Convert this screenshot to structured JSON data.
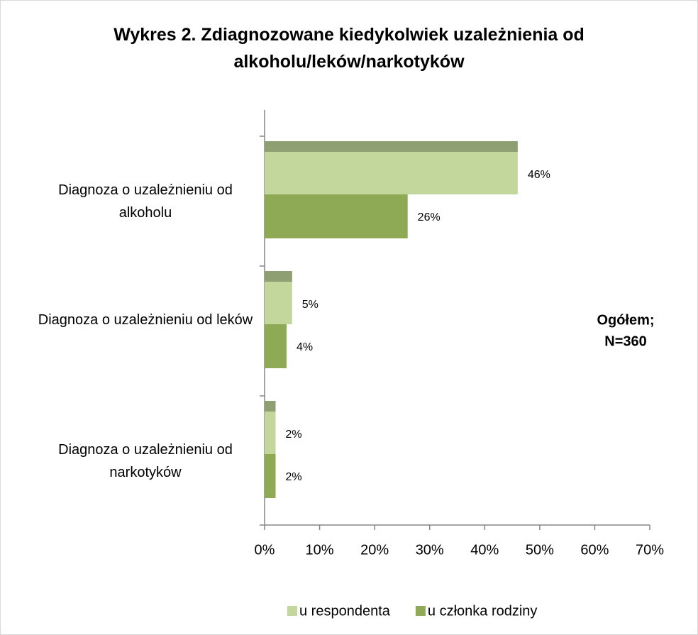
{
  "chart_data": {
    "type": "hbar",
    "title": "Wykres 2. Zdiagnozowane kiedykolwiek uzależnienia od alkoholu/leków/narkotyków",
    "categories": [
      "Diagnoza o uzależnieniu od alkoholu",
      "Diagnoza o uzależnieniu od leków",
      "Diagnoza o uzależnieniu od narkotyków"
    ],
    "series": [
      {
        "name": "u respondenta",
        "color": "#c3d69b",
        "values": [
          46,
          5,
          2
        ],
        "value_labels": [
          "46%",
          "5%",
          "2%"
        ]
      },
      {
        "name": "u członka rodziny",
        "color": "#8eaa55",
        "values": [
          26,
          4,
          2
        ],
        "value_labels": [
          "26%",
          "4%",
          "2%"
        ]
      }
    ],
    "xlim": [
      0,
      70
    ],
    "xticks": [
      {
        "value": 0,
        "label": "0%"
      },
      {
        "value": 10,
        "label": "10%"
      },
      {
        "value": 20,
        "label": "20%"
      },
      {
        "value": 30,
        "label": "30%"
      },
      {
        "value": 40,
        "label": "40%"
      },
      {
        "value": 50,
        "label": "50%"
      },
      {
        "value": 60,
        "label": "60%"
      },
      {
        "value": 70,
        "label": "70%"
      }
    ],
    "annotation": [
      "Ogółem;",
      "N=360"
    ],
    "legend": "bottom"
  }
}
